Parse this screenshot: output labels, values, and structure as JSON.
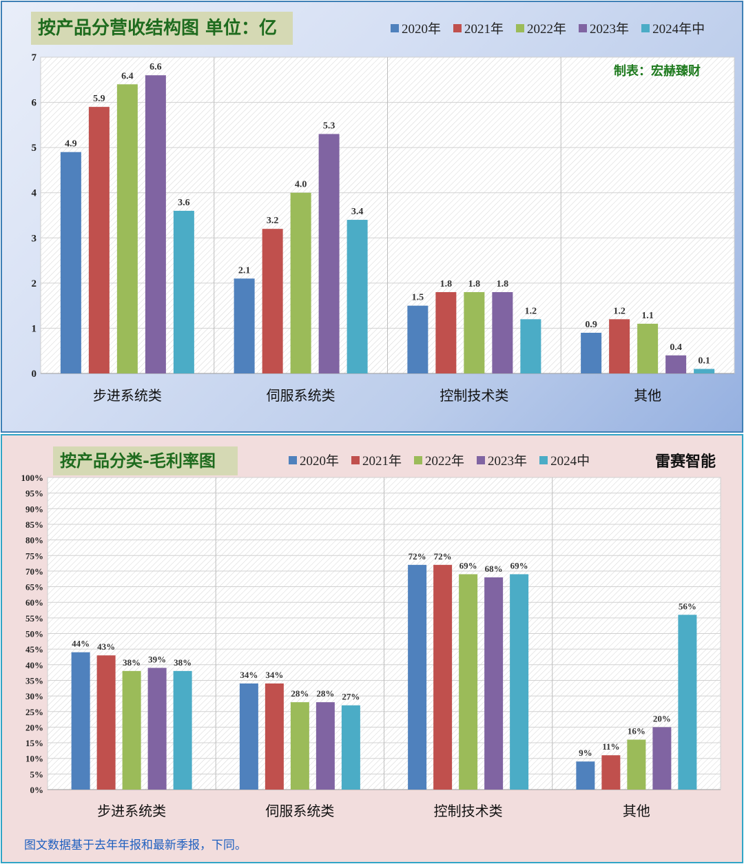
{
  "legend_years": [
    "2020年",
    "2021年",
    "2022年",
    "2023年",
    "2024年中"
  ],
  "legend_years_2": [
    "2020年",
    "2021年",
    "2022年",
    "2023年",
    "2024中"
  ],
  "colors": [
    "#4f81bd",
    "#c0504d",
    "#9bbb59",
    "#8064a2",
    "#4bacc6"
  ],
  "panel1": {
    "title": "按产品分营收结构图 单位：亿",
    "credit": "制表：宏赫臻财"
  },
  "panel2": {
    "title": "按产品分类-毛利率图",
    "brand": "雷赛智能",
    "footnote": "图文数据基于去年年报和最新季报，下同。"
  },
  "chart_data": [
    {
      "type": "bar",
      "title": "按产品分营收结构图 单位：亿",
      "categories": [
        "步进系统类",
        "伺服系统类",
        "控制技术类",
        "其他"
      ],
      "ylim": [
        0,
        7
      ],
      "yticks": [
        0,
        1,
        2,
        3,
        4,
        5,
        6,
        7
      ],
      "grid": true,
      "legend_position": "top-right",
      "series": [
        {
          "name": "2020年",
          "values": [
            4.9,
            2.1,
            1.5,
            0.9
          ],
          "labels": [
            "4.9",
            "2.1",
            "1.5",
            "0.9"
          ]
        },
        {
          "name": "2021年",
          "values": [
            5.9,
            3.2,
            1.8,
            1.2
          ],
          "labels": [
            "5.9",
            "3.2",
            "1.8",
            "1.2"
          ]
        },
        {
          "name": "2022年",
          "values": [
            6.4,
            4.0,
            1.8,
            1.1
          ],
          "labels": [
            "6.4",
            "4.0",
            "1.8",
            "1.1"
          ]
        },
        {
          "name": "2023年",
          "values": [
            6.6,
            5.3,
            1.8,
            0.4
          ],
          "labels": [
            "6.6",
            "5.3",
            "1.8",
            "0.4"
          ]
        },
        {
          "name": "2024年中",
          "values": [
            3.6,
            3.4,
            1.2,
            0.1
          ],
          "labels": [
            "3.6",
            "3.4",
            "1.2",
            "0.1"
          ]
        }
      ]
    },
    {
      "type": "bar",
      "title": "按产品分类-毛利率图",
      "categories": [
        "步进系统类",
        "伺服系统类",
        "控制技术类",
        "其他"
      ],
      "ylim": [
        0,
        100
      ],
      "yticks": [
        "0%",
        "5%",
        "10%",
        "15%",
        "20%",
        "25%",
        "30%",
        "35%",
        "40%",
        "45%",
        "50%",
        "55%",
        "60%",
        "65%",
        "70%",
        "75%",
        "80%",
        "85%",
        "90%",
        "95%",
        "100%"
      ],
      "grid": true,
      "legend_position": "top",
      "series": [
        {
          "name": "2020年",
          "values": [
            44,
            34,
            72,
            9
          ],
          "labels": [
            "44%",
            "34%",
            "72%",
            "9%"
          ]
        },
        {
          "name": "2021年",
          "values": [
            43,
            34,
            72,
            11
          ],
          "labels": [
            "43%",
            "34%",
            "72%",
            "11%"
          ]
        },
        {
          "name": "2022年",
          "values": [
            38,
            28,
            69,
            16
          ],
          "labels": [
            "38%",
            "28%",
            "69%",
            "16%"
          ]
        },
        {
          "name": "2023年",
          "values": [
            39,
            28,
            68,
            20
          ],
          "labels": [
            "39%",
            "28%",
            "68%",
            "20%"
          ]
        },
        {
          "name": "2024中",
          "values": [
            38,
            27,
            69,
            56
          ],
          "labels": [
            "38%",
            "27%",
            "69%",
            "56%"
          ]
        }
      ]
    }
  ]
}
